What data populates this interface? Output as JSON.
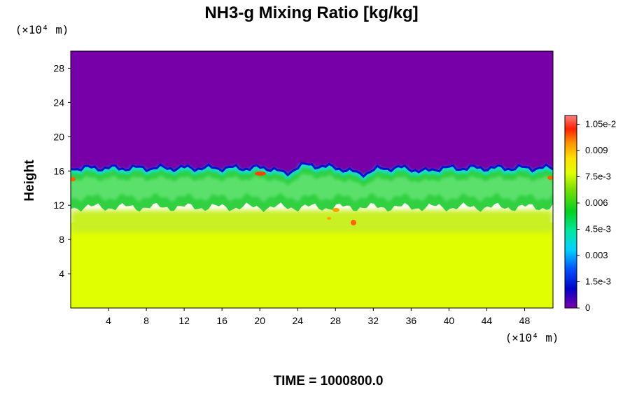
{
  "chart_data": {
    "type": "heatmap",
    "title": "NH3-g Mixing Ratio [kg/kg]",
    "ylabel": "Height",
    "xunit": "(×10⁴ m)",
    "yunit": "(×10⁴ m)",
    "time_label": "TIME = 1000800.0",
    "xlim": [
      0,
      51
    ],
    "ylim": [
      0,
      30
    ],
    "xticks": [
      4,
      8,
      12,
      16,
      20,
      24,
      28,
      32,
      36,
      40,
      44,
      48
    ],
    "yticks": [
      4,
      8,
      12,
      16,
      20,
      24,
      28
    ],
    "colorbar": {
      "min": 0,
      "max": 0.011,
      "ticks": [
        {
          "value": 0,
          "label": "0"
        },
        {
          "value": 0.0015,
          "label": "1.5e-3"
        },
        {
          "value": 0.003,
          "label": "0.003"
        },
        {
          "value": 0.0045,
          "label": "4.5e-3"
        },
        {
          "value": 0.006,
          "label": "0.006"
        },
        {
          "value": 0.0075,
          "label": "7.5e-3"
        },
        {
          "value": 0.009,
          "label": "0.009"
        },
        {
          "value": 0.0105,
          "label": "1.05e-2"
        }
      ]
    },
    "field_regions": [
      {
        "region": "above cloud top",
        "y_range": [
          16,
          30
        ],
        "value": 0
      },
      {
        "region": "mixing layer",
        "y_range": [
          11,
          16
        ],
        "value": 0.006
      },
      {
        "region": "lower layer",
        "y_range": [
          0,
          9
        ],
        "value": 0.0078
      }
    ]
  }
}
